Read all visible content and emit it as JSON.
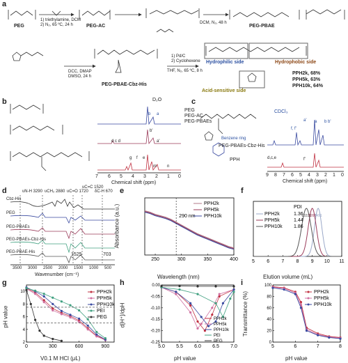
{
  "panels": {
    "a": "a",
    "b": "b",
    "c": "c",
    "d": "d",
    "e": "e",
    "f": "f",
    "g": "g",
    "h": "h",
    "i": "i"
  },
  "scheme": {
    "peg": "PEG",
    "peg_ac": "PEG-AC",
    "peg_pbae": "PEG-PBAE",
    "peg_pbae_cbz_his": "PEG-PBAE-Cbz-His",
    "cond1a": "1) triethylamine, DCM",
    "cond1b": "2) N₂, 65 ºC, 24 h",
    "cond2": "DCM, N₂, 48 h",
    "cond3a": "DCC, DMAP",
    "cond3b": "DMSO, 24 h",
    "cond4a": "1) Pd/C",
    "cond4b": "2) Cyclohexene",
    "cond4c": "THF, N₂, 65 ºC, 8 h",
    "hydrophilic": "Hydrophilic side",
    "hydrophobic": "Hydrophobic side",
    "acid": "Acid-sensitive side",
    "yield1": "PPH2k, 68%",
    "yield2": "PPH5k, 63%",
    "yield3": "PPH10k, 64%"
  },
  "panel_b": {
    "legend": [
      "PEG",
      "PEG-AC",
      "PEG-PBAEs"
    ],
    "d2o": "D₂O",
    "xlabel": "Chemical shift (ppm)",
    "ticks": [
      "7",
      "6",
      "5",
      "4",
      "3",
      "2",
      "1",
      "0"
    ],
    "peaks": [
      "a",
      "b",
      "b'",
      "d c d",
      "a'",
      "b'",
      "g",
      "f",
      "e",
      "j",
      "i",
      "h",
      "m",
      "m'",
      "n",
      "n'"
    ]
  },
  "panel_c": {
    "label_top": "PEG-PBAEs-Cbz-His",
    "label_bot": "PPH",
    "benzene": "Benzene ring",
    "cdcl3": "CDCl₃",
    "xlabel": "Chemical shift (ppm)",
    "ticks": [
      "9",
      "8",
      "7",
      "6",
      "5",
      "4",
      "3",
      "2",
      "1",
      "0"
    ],
    "peaks": [
      "a'",
      "f, f'",
      "a",
      "b b'",
      "d,c,e",
      "f'"
    ]
  },
  "panel_d": {
    "xlabel": "Wavenumber (cm⁻¹)",
    "ticks": [
      "3500",
      "3000",
      "2500",
      "2000",
      "1500",
      "1000",
      "500"
    ],
    "rows": [
      "Cbz-His",
      "PEG",
      "PEG-PBAEs",
      "PEG-PBAEs-Cbz-His",
      "PEG-PBAE-His"
    ],
    "bands": [
      "υN-H 3290",
      "υCH₂ 2880",
      "υC=O 1720",
      "υC=C 1520",
      "δC-H 670"
    ],
    "notes": [
      "1525",
      "703"
    ]
  },
  "chart_data": [
    {
      "type": "line",
      "panel": "e",
      "xlabel": "Wavelength (nm)",
      "ylabel": "Absorbance (a.u.)",
      "xlim": [
        230,
        400
      ],
      "xticks": [
        "250",
        "300",
        "350",
        "400"
      ],
      "annotation": "290 nm",
      "series": [
        {
          "name": "PPH2k",
          "color": "#b07a8a",
          "x": [
            230,
            240,
            250,
            260,
            270,
            280,
            290,
            300,
            310,
            320,
            330,
            340,
            350,
            360,
            370,
            380,
            390,
            400
          ],
          "y": [
            0.62,
            0.6,
            0.57,
            0.55,
            0.53,
            0.5,
            0.46,
            0.42,
            0.38,
            0.34,
            0.3,
            0.27,
            0.24,
            0.21,
            0.18,
            0.15,
            0.12,
            0.1
          ]
        },
        {
          "name": "PPH5k",
          "color": "#9b3b5a",
          "x": [
            230,
            240,
            250,
            260,
            270,
            280,
            290,
            300,
            310,
            320,
            330,
            340,
            350,
            360,
            370,
            380,
            390,
            400
          ],
          "y": [
            0.61,
            0.59,
            0.56,
            0.54,
            0.52,
            0.49,
            0.45,
            0.41,
            0.37,
            0.33,
            0.29,
            0.26,
            0.23,
            0.2,
            0.17,
            0.14,
            0.11,
            0.09
          ]
        },
        {
          "name": "PPH10k",
          "color": "#3a4aa0",
          "x": [
            230,
            240,
            250,
            260,
            270,
            280,
            290,
            300,
            310,
            320,
            330,
            340,
            350,
            360,
            370,
            380,
            390,
            400
          ],
          "y": [
            0.6,
            0.58,
            0.55,
            0.53,
            0.51,
            0.48,
            0.44,
            0.4,
            0.36,
            0.32,
            0.28,
            0.25,
            0.22,
            0.19,
            0.16,
            0.13,
            0.1,
            0.08
          ]
        }
      ]
    },
    {
      "type": "line",
      "panel": "f",
      "xlabel": "Elution volume (mL)",
      "xlim": [
        5,
        11
      ],
      "xticks": [
        "5",
        "6",
        "7",
        "8",
        "9",
        "10",
        "11"
      ],
      "pdi_header": "PDI",
      "peak_labels": [
        "13335",
        "9261",
        "7491"
      ],
      "series": [
        {
          "name": "PPH2k",
          "pdi": "1.36",
          "color": "#9aa8c8",
          "center": 9.4,
          "width": 0.5
        },
        {
          "name": "PPH5k",
          "pdi": "1.44",
          "color": "#9b3b5a",
          "center": 9.0,
          "width": 0.55
        },
        {
          "name": "PPH10k",
          "pdi": "1.86",
          "color": "#555555",
          "center": 8.6,
          "width": 0.65
        }
      ]
    },
    {
      "type": "line",
      "panel": "g",
      "xlabel": "V0.1 M HCl (μL)",
      "ylabel": "pH value",
      "xlim": [
        0,
        1000
      ],
      "ylim": [
        2,
        11
      ],
      "xticks": [
        "0",
        "300",
        "600",
        "900"
      ],
      "yticks": [
        "2",
        "4",
        "6",
        "8",
        "10"
      ],
      "series": [
        {
          "name": "PPH2k",
          "color": "#c03040",
          "x": [
            0,
            100,
            200,
            300,
            400,
            500,
            600,
            700,
            800,
            900
          ],
          "y": [
            10.5,
            9.8,
            8.6,
            7.3,
            6.6,
            6.1,
            5.4,
            4.2,
            3.0,
            2.4
          ]
        },
        {
          "name": "PPH5k",
          "color": "#d070a0",
          "x": [
            0,
            100,
            200,
            300,
            400,
            500,
            600,
            700,
            800,
            900
          ],
          "y": [
            10.4,
            9.6,
            8.3,
            7.0,
            6.4,
            5.9,
            5.2,
            4.0,
            2.9,
            2.3
          ]
        },
        {
          "name": "PPH10k",
          "color": "#3a4aa0",
          "x": [
            0,
            100,
            200,
            300,
            400,
            500,
            600,
            700,
            800,
            900
          ],
          "y": [
            10.6,
            10.0,
            9.2,
            8.0,
            6.9,
            6.3,
            5.7,
            4.6,
            3.2,
            2.4
          ]
        },
        {
          "name": "PEI",
          "color": "#40a080",
          "x": [
            0,
            100,
            200,
            300,
            400,
            500,
            600,
            700,
            800,
            900
          ],
          "y": [
            10.5,
            10.1,
            9.6,
            9.0,
            8.4,
            7.8,
            7.0,
            5.6,
            3.6,
            2.6
          ]
        },
        {
          "name": "PEG",
          "color": "#333333",
          "x": [
            0,
            50,
            100,
            150,
            200,
            300,
            400
          ],
          "y": [
            10.2,
            8.0,
            5.5,
            3.8,
            3.0,
            2.5,
            2.2
          ]
        }
      ]
    },
    {
      "type": "line",
      "panel": "h",
      "xlabel": "pH value",
      "ylabel": "d[H⁺]/dpH",
      "xlim": [
        5.0,
        7.0
      ],
      "ylim": [
        -0.25,
        0.0
      ],
      "xticks": [
        "5.0",
        "5.5",
        "6.0",
        "6.5",
        "7.0"
      ],
      "yticks": [
        "0.00",
        "-0.05",
        "-0.10",
        "-0.15",
        "-0.20",
        "-0.25"
      ],
      "series": [
        {
          "name": "PPH2k",
          "color": "#c03040",
          "x": [
            5.0,
            5.4,
            5.8,
            6.0,
            6.2,
            6.4,
            6.6,
            7.0
          ],
          "y": [
            -0.01,
            -0.03,
            -0.09,
            -0.16,
            -0.2,
            -0.13,
            -0.05,
            -0.02
          ]
        },
        {
          "name": "PPH5k",
          "color": "#d070a0",
          "x": [
            5.0,
            5.4,
            5.8,
            6.0,
            6.1,
            6.4,
            6.6,
            7.0
          ],
          "y": [
            -0.01,
            -0.04,
            -0.12,
            -0.19,
            -0.17,
            -0.1,
            -0.04,
            -0.02
          ]
        },
        {
          "name": "PPH10k",
          "color": "#3a4aa0",
          "x": [
            5.0,
            5.4,
            5.8,
            6.1,
            6.3,
            6.5,
            6.7,
            7.0
          ],
          "y": [
            -0.01,
            -0.03,
            -0.08,
            -0.14,
            -0.18,
            -0.16,
            -0.08,
            -0.02
          ]
        },
        {
          "name": "PEI",
          "color": "#40a080",
          "x": [
            5.0,
            5.5,
            6.0,
            6.5,
            6.7,
            6.9,
            7.0
          ],
          "y": [
            -0.01,
            -0.02,
            -0.04,
            -0.08,
            -0.14,
            -0.06,
            -0.03
          ]
        },
        {
          "name": "PEG",
          "color": "#333333",
          "x": [
            5.0,
            5.5,
            6.0,
            6.5,
            7.0
          ],
          "y": [
            -0.005,
            -0.005,
            -0.006,
            -0.006,
            -0.006
          ]
        }
      ]
    },
    {
      "type": "line",
      "panel": "i",
      "xlabel": "pH value",
      "ylabel": "Transmittance (%)",
      "xlim": [
        5,
        8
      ],
      "ylim": [
        0,
        100
      ],
      "xticks": [
        "5",
        "6",
        "7",
        "8"
      ],
      "yticks": [
        "0",
        "20",
        "40",
        "60",
        "80",
        "100"
      ],
      "series": [
        {
          "name": "PPH2k",
          "color": "#c03040",
          "x": [
            5,
            5.5,
            6,
            6.25,
            6.5,
            7,
            7.5,
            8
          ],
          "y": [
            97,
            95,
            88,
            70,
            25,
            15,
            10,
            8
          ]
        },
        {
          "name": "PPH5k",
          "color": "#d070a0",
          "x": [
            5,
            5.5,
            6,
            6.25,
            6.5,
            7,
            7.5,
            8
          ],
          "y": [
            96,
            94,
            86,
            65,
            22,
            13,
            9,
            7
          ]
        },
        {
          "name": "PPH10k",
          "color": "#3a4aa0",
          "x": [
            5,
            5.5,
            6,
            6.25,
            6.5,
            7,
            7.5,
            8
          ],
          "y": [
            95,
            92,
            84,
            60,
            20,
            12,
            8,
            6
          ]
        }
      ]
    }
  ]
}
